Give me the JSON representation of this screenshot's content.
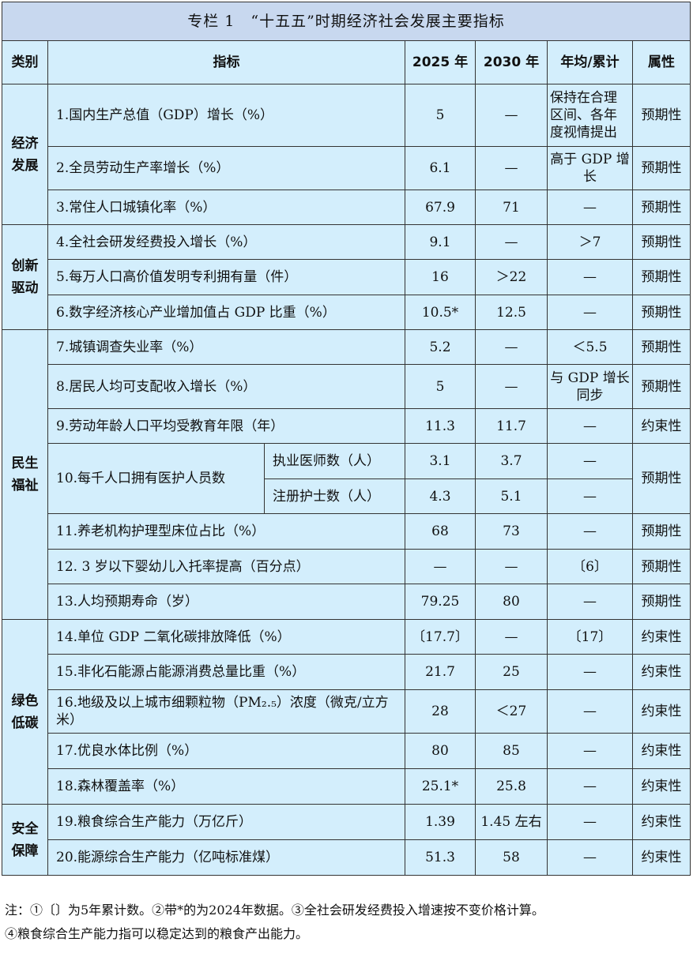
{
  "title": "专栏 1　“十五五”时期经济社会发展主要指标",
  "headers": [
    "类别",
    "指标",
    "2025 年",
    "2030 年",
    "年均/累计",
    "属性"
  ],
  "categories": [
    {
      "name": "经济\n发展",
      "rows": [
        {
          "indicator": "1.国内生产总值（GDP）增长（%）",
          "y2025": "5",
          "y2030": "—",
          "avg": "保持在合理区间、各年度视情提出",
          "attr": "预期性"
        },
        {
          "indicator": "2.全员劳动生产率增长（%）",
          "y2025": "6.1",
          "y2030": "—",
          "avg": "高于 GDP 增长",
          "attr": "预期性"
        },
        {
          "indicator": "3.常住人口城镇化率（%）",
          "y2025": "67.9",
          "y2030": "71",
          "avg": "—",
          "attr": "预期性"
        }
      ]
    },
    {
      "name": "创新\n驱动",
      "rows": [
        {
          "indicator": "4.全社会研发经费投入增长（%）",
          "y2025": "9.1",
          "y2030": "—",
          "avg": "＞7",
          "attr": "预期性"
        },
        {
          "indicator": "5.每万人口高价值发明专利拥有量（件）",
          "y2025": "16",
          "y2030": "＞22",
          "avg": "—",
          "attr": "预期性"
        },
        {
          "indicator": "6.数字经济核心产业增加值占 GDP 比重（%）",
          "y2025": "10.5*",
          "y2030": "12.5",
          "avg": "—",
          "attr": "预期性"
        }
      ]
    },
    {
      "name": "民生\n福祉",
      "rows": [
        {
          "indicator": "7.城镇调查失业率（%）",
          "y2025": "5.2",
          "y2030": "—",
          "avg": "＜5.5",
          "attr": "预期性"
        },
        {
          "indicator": "8.居民人均可支配收入增长（%）",
          "y2025": "5",
          "y2030": "—",
          "avg": "与 GDP 增长同步",
          "attr": "预期性"
        },
        {
          "indicator": "9.劳动年龄人口平均受教育年限（年）",
          "y2025": "11.3",
          "y2030": "11.7",
          "avg": "—",
          "attr": "约束性"
        },
        {
          "indicator": "10.每千人口拥有医护人员数",
          "attr": "预期性",
          "sub": [
            {
              "name": "执业医师数（人）",
              "y2025": "3.1",
              "y2030": "3.7",
              "avg": "—"
            },
            {
              "name": "注册护士数（人）",
              "y2025": "4.3",
              "y2030": "5.1",
              "avg": "—"
            }
          ]
        },
        {
          "indicator": "11.养老机构护理型床位占比（%）",
          "y2025": "68",
          "y2030": "73",
          "avg": "—",
          "attr": "预期性"
        },
        {
          "indicator": "12. 3 岁以下婴幼儿入托率提高（百分点）",
          "y2025": "—",
          "y2030": "—",
          "avg": "〔6〕",
          "attr": "预期性"
        },
        {
          "indicator": "13.人均预期寿命（岁）",
          "y2025": "79.25",
          "y2030": "80",
          "avg": "—",
          "attr": "预期性"
        }
      ]
    },
    {
      "name": "绿色\n低碳",
      "rows": [
        {
          "indicator": "14.单位 GDP 二氧化碳排放降低（%）",
          "y2025": "〔17.7〕",
          "y2030": "—",
          "avg": "〔17〕",
          "attr": "约束性"
        },
        {
          "indicator": "15.非化石能源占能源消费总量比重（%）",
          "y2025": "21.7",
          "y2030": "25",
          "avg": "—",
          "attr": "约束性"
        },
        {
          "indicator": "16.地级及以上城市细颗粒物（PM₂.₅）浓度（微克/立方米）",
          "y2025": "28",
          "y2030": "＜27",
          "avg": "—",
          "attr": "约束性"
        },
        {
          "indicator": "17.优良水体比例（%）",
          "y2025": "80",
          "y2030": "85",
          "avg": "—",
          "attr": "约束性"
        },
        {
          "indicator": "18.森林覆盖率（%）",
          "y2025": "25.1*",
          "y2030": "25.8",
          "avg": "—",
          "attr": "约束性"
        }
      ]
    },
    {
      "name": "安全\n保障",
      "rows": [
        {
          "indicator": "19.粮食综合生产能力（万亿斤）",
          "y2025": "1.39",
          "y2030": "1.45 左右",
          "avg": "—",
          "attr": "约束性"
        },
        {
          "indicator": "20.能源综合生产能力（亿吨标准煤）",
          "y2025": "51.3",
          "y2030": "58",
          "avg": "—",
          "attr": "约束性"
        }
      ]
    }
  ],
  "notes": [
    "注：①〔〕为5年累计数。②带*的为2024年数据。③全社会研发经费投入增速按不变价格计算。",
    "④粮食综合生产能力指可以稳定达到的粮食产出能力。"
  ]
}
